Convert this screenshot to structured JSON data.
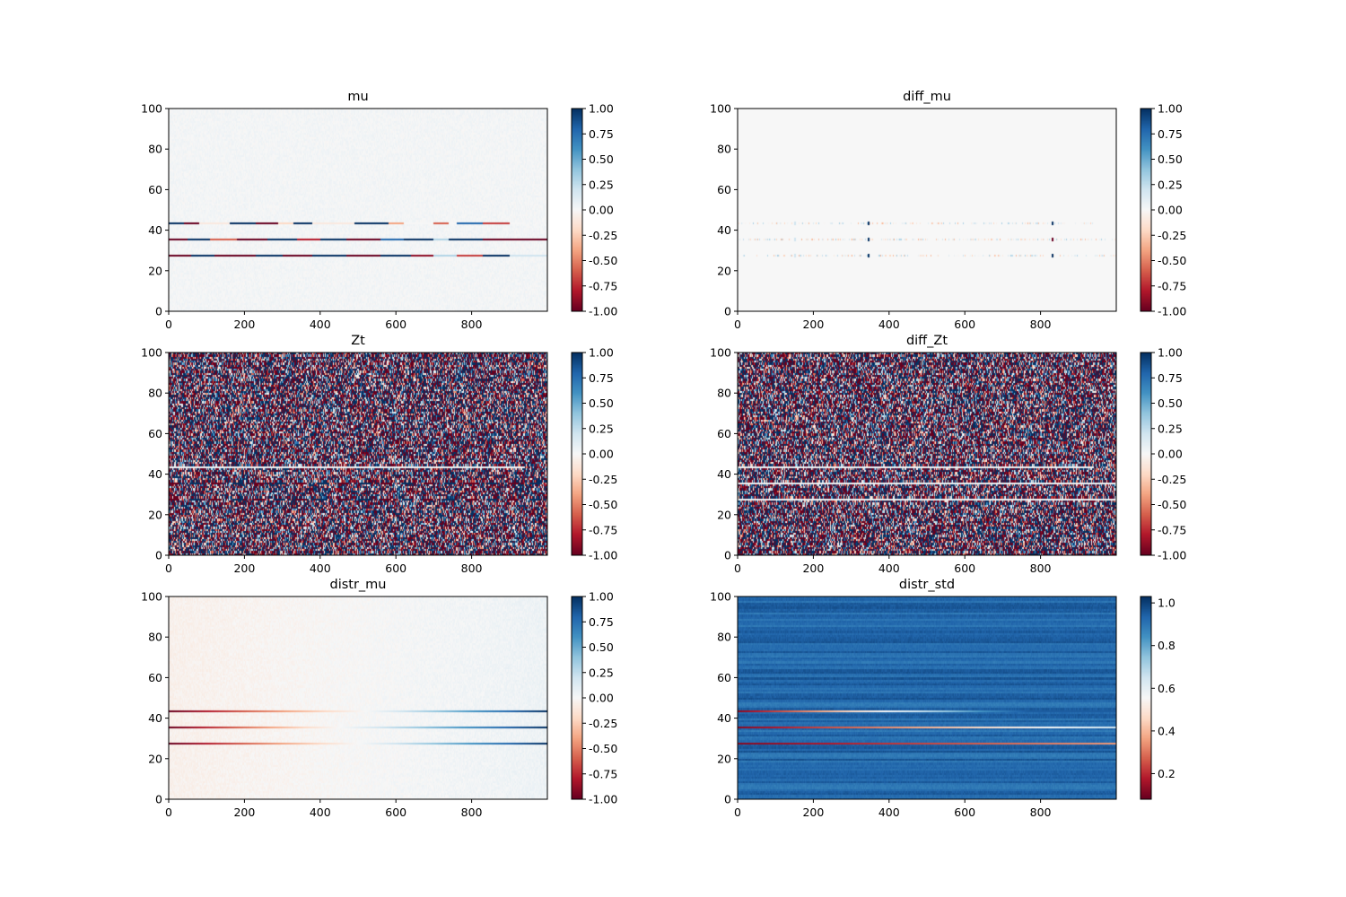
{
  "chart_data": [
    {
      "type": "heatmap",
      "id": "mu",
      "title": "mu",
      "xlabel": "",
      "ylabel": "",
      "xlim": [
        0,
        1000
      ],
      "ylim": [
        0,
        100
      ],
      "xticks": [
        "0",
        "200",
        "400",
        "600",
        "800"
      ],
      "yticks": [
        "0",
        "20",
        "40",
        "60",
        "80",
        "100"
      ],
      "colormap": "RdBu",
      "vmin": -1.0,
      "vmax": 1.0,
      "colorbar_ticks": [
        "-1.00",
        "-0.75",
        "-0.50",
        "-0.25",
        "0.00",
        "0.25",
        "0.50",
        "0.75",
        "1.00"
      ],
      "background_level": 0.02,
      "texture": "faint",
      "highlight_rows": [
        {
          "y": 27.5,
          "pattern": "segments",
          "x_end": 1000,
          "segments": [
            [
              0,
              60,
              -1.0
            ],
            [
              60,
              120,
              1.0
            ],
            [
              120,
              230,
              -1.0
            ],
            [
              230,
              300,
              1.0
            ],
            [
              300,
              380,
              -1.0
            ],
            [
              380,
              470,
              1.0
            ],
            [
              470,
              560,
              -1.0
            ],
            [
              560,
              640,
              1.0
            ],
            [
              640,
              700,
              -0.9
            ],
            [
              700,
              760,
              0.3
            ],
            [
              760,
              830,
              -0.7
            ],
            [
              830,
              900,
              1.0
            ],
            [
              900,
              1000,
              0.2
            ]
          ]
        },
        {
          "y": 35.5,
          "pattern": "segments",
          "x_end": 1000,
          "segments": [
            [
              0,
              50,
              -1.0
            ],
            [
              50,
              110,
              1.0
            ],
            [
              110,
              180,
              -0.6
            ],
            [
              180,
              260,
              -1.0
            ],
            [
              260,
              340,
              1.0
            ],
            [
              340,
              400,
              -0.8
            ],
            [
              400,
              470,
              1.0
            ],
            [
              470,
              560,
              -1.0
            ],
            [
              560,
              620,
              0.8
            ],
            [
              620,
              700,
              1.0
            ],
            [
              700,
              740,
              0.3
            ],
            [
              740,
              830,
              1.0
            ],
            [
              830,
              900,
              -1.0
            ],
            [
              900,
              1000,
              -1.0
            ]
          ]
        },
        {
          "y": 43.5,
          "pattern": "segments",
          "x_end": 940,
          "segments": [
            [
              0,
              40,
              1.0
            ],
            [
              40,
              80,
              -1.0
            ],
            [
              80,
              160,
              -0.1
            ],
            [
              160,
              230,
              1.0
            ],
            [
              230,
              290,
              -1.0
            ],
            [
              290,
              330,
              -0.2
            ],
            [
              330,
              380,
              1.0
            ],
            [
              380,
              490,
              -0.1
            ],
            [
              490,
              580,
              1.0
            ],
            [
              580,
              620,
              -0.4
            ],
            [
              620,
              700,
              0.0
            ],
            [
              700,
              740,
              -0.6
            ],
            [
              740,
              760,
              0.0
            ],
            [
              760,
              830,
              0.8
            ],
            [
              830,
              900,
              -0.7
            ],
            [
              900,
              940,
              0.0
            ]
          ]
        }
      ]
    },
    {
      "type": "heatmap",
      "id": "diff_mu",
      "title": "diff_mu",
      "xlabel": "",
      "ylabel": "",
      "xlim": [
        0,
        1000
      ],
      "ylim": [
        0,
        100
      ],
      "xticks": [
        "0",
        "200",
        "400",
        "600",
        "800"
      ],
      "yticks": [
        "0",
        "20",
        "40",
        "60",
        "80",
        "100"
      ],
      "colormap": "RdBu",
      "vmin": -1.0,
      "vmax": 1.0,
      "colorbar_ticks": [
        "-1.00",
        "-0.75",
        "-0.50",
        "-0.25",
        "0.00",
        "0.25",
        "0.50",
        "0.75",
        "1.00"
      ],
      "background_level": 0.0,
      "texture": "none",
      "highlight_rows": [
        {
          "y": 27.5,
          "pattern": "sparse",
          "x_end": 1000,
          "amplitude": 0.35
        },
        {
          "y": 35.5,
          "pattern": "sparse",
          "x_end": 1000,
          "amplitude": 0.35
        },
        {
          "y": 43.5,
          "pattern": "sparse",
          "x_end": 940,
          "amplitude": 0.35
        }
      ],
      "spikes": [
        {
          "x": 345,
          "v": 1.0
        },
        {
          "x": 830,
          "v": 1.0
        },
        {
          "x": 150,
          "v": 0.2
        }
      ]
    },
    {
      "type": "heatmap",
      "id": "Zt",
      "title": "Zt",
      "xlabel": "",
      "ylabel": "",
      "xlim": [
        0,
        1000
      ],
      "ylim": [
        0,
        100
      ],
      "xticks": [
        "0",
        "200",
        "400",
        "600",
        "800"
      ],
      "yticks": [
        "0",
        "20",
        "40",
        "60",
        "80",
        "100"
      ],
      "colormap": "RdBu",
      "vmin": -1.0,
      "vmax": 1.0,
      "colorbar_ticks": [
        "-1.00",
        "-0.75",
        "-0.50",
        "-0.25",
        "0.00",
        "0.25",
        "0.50",
        "0.75",
        "1.00"
      ],
      "texture": "noise",
      "highlight_rows": [
        {
          "y": 27.5,
          "pattern": "dashed",
          "x_end": 1000
        },
        {
          "y": 35.5,
          "pattern": "dashed",
          "x_end": 1000
        },
        {
          "y": 43.5,
          "pattern": "pale",
          "x_end": 940
        }
      ]
    },
    {
      "type": "heatmap",
      "id": "diff_Zt",
      "title": "diff_Zt",
      "xlabel": "",
      "ylabel": "",
      "xlim": [
        0,
        1000
      ],
      "ylim": [
        0,
        100
      ],
      "xticks": [
        "0",
        "200",
        "400",
        "600",
        "800"
      ],
      "yticks": [
        "0",
        "20",
        "40",
        "60",
        "80",
        "100"
      ],
      "colormap": "RdBu",
      "vmin": -1.0,
      "vmax": 1.0,
      "colorbar_ticks": [
        "-1.00",
        "-0.75",
        "-0.50",
        "-0.25",
        "0.00",
        "0.25",
        "0.50",
        "0.75",
        "1.00"
      ],
      "texture": "noise",
      "highlight_rows": [
        {
          "y": 27.5,
          "pattern": "pale",
          "x_end": 1000
        },
        {
          "y": 35.5,
          "pattern": "pale",
          "x_end": 1000
        },
        {
          "y": 43.5,
          "pattern": "pale",
          "x_end": 940
        }
      ]
    },
    {
      "type": "heatmap",
      "id": "distr_mu",
      "title": "distr_mu",
      "xlabel": "",
      "ylabel": "",
      "xlim": [
        0,
        1000
      ],
      "ylim": [
        0,
        100
      ],
      "xticks": [
        "0",
        "200",
        "400",
        "600",
        "800"
      ],
      "yticks": [
        "0",
        "20",
        "40",
        "60",
        "80",
        "100"
      ],
      "colormap": "RdBu",
      "vmin": -1.0,
      "vmax": 1.0,
      "colorbar_ticks": [
        "-1.00",
        "-0.75",
        "-0.50",
        "-0.25",
        "0.00",
        "0.25",
        "0.50",
        "0.75",
        "1.00"
      ],
      "background_gradient": [
        -0.05,
        0.05
      ],
      "texture": "faint",
      "highlight_rows": [
        {
          "y": 27.5,
          "pattern": "gradient",
          "x_end": 1000,
          "from": -1.0,
          "to": 1.0,
          "zero_at": 500
        },
        {
          "y": 35.5,
          "pattern": "gradient",
          "x_end": 1000,
          "from": -1.0,
          "to": 1.0,
          "zero_at": 450
        },
        {
          "y": 43.5,
          "pattern": "gradient",
          "x_end": 1000,
          "from": -1.0,
          "to": 1.0,
          "zero_at": 520
        }
      ]
    },
    {
      "type": "heatmap",
      "id": "distr_std",
      "title": "distr_std",
      "xlabel": "",
      "ylabel": "",
      "xlim": [
        0,
        1000
      ],
      "ylim": [
        0,
        100
      ],
      "xticks": [
        "0",
        "200",
        "400",
        "600",
        "800"
      ],
      "yticks": [
        "0",
        "20",
        "40",
        "60",
        "80",
        "100"
      ],
      "colormap": "RdBu",
      "vmin": 0.08,
      "vmax": 1.03,
      "colorbar_tick_values": [
        0.2,
        0.4,
        0.6,
        0.8,
        1.0
      ],
      "colorbar_ticks": [
        "0.2",
        "0.4",
        "0.6",
        "0.8",
        "1.0"
      ],
      "background_level": 0.93,
      "texture": "std",
      "highlight_rows": [
        {
          "y": 27.5,
          "pattern": "gradient",
          "x_end": 1000,
          "from": 0.12,
          "to": 0.35,
          "zero_at": 500
        },
        {
          "y": 35.5,
          "pattern": "gradient",
          "x_end": 1000,
          "from": 0.12,
          "to": 0.65,
          "zero_at": 500
        },
        {
          "y": 43.5,
          "pattern": "peak",
          "x_end": 1000,
          "from": 0.12,
          "to": 0.85,
          "peak_x": 650
        }
      ]
    }
  ]
}
